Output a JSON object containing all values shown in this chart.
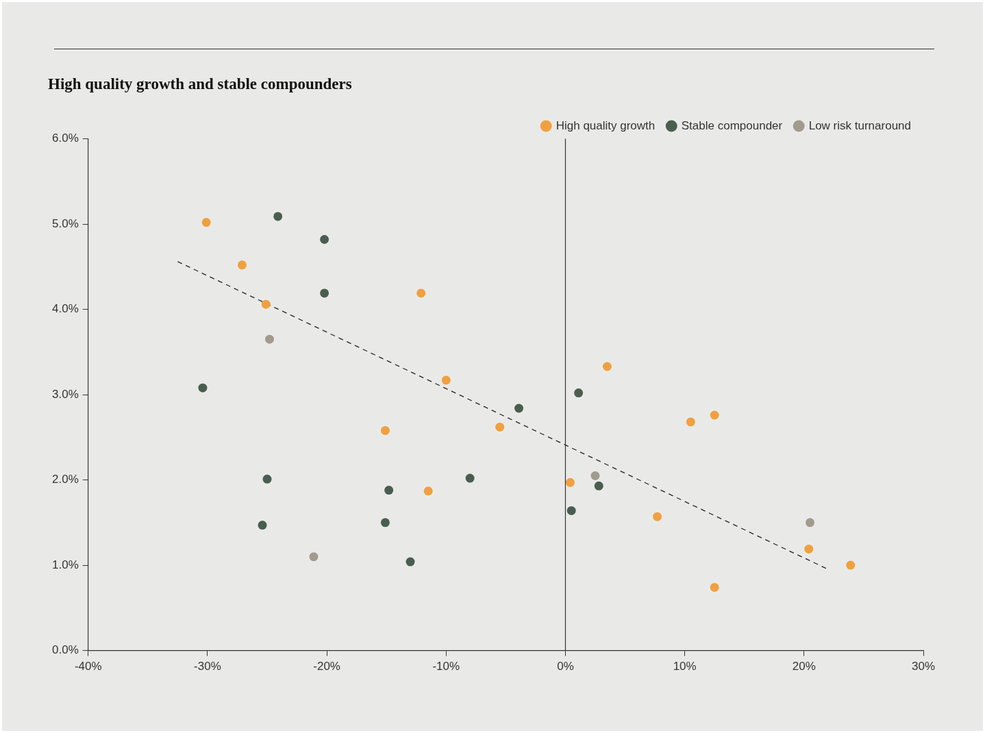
{
  "chart_data": {
    "type": "scatter",
    "title": "High quality growth and stable compounders",
    "xlim": [
      -40,
      30
    ],
    "xticks": [
      {
        "value": -40,
        "label": "-40%"
      },
      {
        "value": -30,
        "label": "-30%"
      },
      {
        "value": -20,
        "label": "-20%"
      },
      {
        "value": -10,
        "label": "-10%"
      },
      {
        "value": 0,
        "label": "0%"
      },
      {
        "value": 10,
        "label": "10%"
      },
      {
        "value": 20,
        "label": "20%"
      },
      {
        "value": 30,
        "label": "30%"
      }
    ],
    "ylim": [
      0,
      6
    ],
    "yticks": [
      {
        "value": 0,
        "label": "0.0%"
      },
      {
        "value": 1,
        "label": "1.0%"
      },
      {
        "value": 2,
        "label": "2.0%"
      },
      {
        "value": 3,
        "label": "3.0%"
      },
      {
        "value": 4,
        "label": "4.0%"
      },
      {
        "value": 5,
        "label": "5.0%"
      },
      {
        "value": 6,
        "label": "6.0%"
      }
    ],
    "grid": false,
    "legend": "top right",
    "marker": "circle",
    "series": [
      {
        "name": "High quality growth",
        "color": "#f0a040",
        "x": [
          -30.1,
          -27.1,
          -25.1,
          -12.1,
          -10.0,
          -15.1,
          -5.5,
          -11.5,
          3.5,
          10.5,
          12.5,
          0.4,
          7.7,
          20.4,
          23.9,
          12.5
        ],
        "values": [
          5.02,
          4.52,
          4.06,
          4.19,
          3.17,
          2.58,
          2.62,
          1.87,
          3.33,
          2.68,
          2.76,
          1.97,
          1.57,
          1.19,
          1.0,
          0.74
        ]
      },
      {
        "name": "Stable compounder",
        "color": "#4a5e4f",
        "x": [
          -24.1,
          -20.2,
          -20.2,
          -30.4,
          -3.9,
          1.1,
          -25.0,
          -14.8,
          -8.0,
          -25.4,
          -15.1,
          -13.0,
          0.5,
          2.8
        ],
        "values": [
          5.09,
          4.82,
          4.19,
          3.08,
          2.84,
          3.02,
          2.01,
          1.88,
          2.02,
          1.47,
          1.5,
          1.04,
          1.64,
          1.93
        ]
      },
      {
        "name": "Low risk turnaround",
        "color": "#a39a8e",
        "x": [
          -24.8,
          -21.1,
          2.5,
          20.5
        ],
        "values": [
          3.65,
          1.1,
          2.05,
          1.5
        ]
      },
      {
        "type": "line",
        "color": "#222222",
        "line_style": "dashed",
        "marker": "none",
        "x": [
          -32.5,
          21.9
        ],
        "values": [
          4.56,
          0.96
        ]
      }
    ],
    "ref_lines": [
      {
        "axis": "x",
        "value": 0,
        "color": "#333333",
        "line_style": "solid"
      }
    ]
  }
}
